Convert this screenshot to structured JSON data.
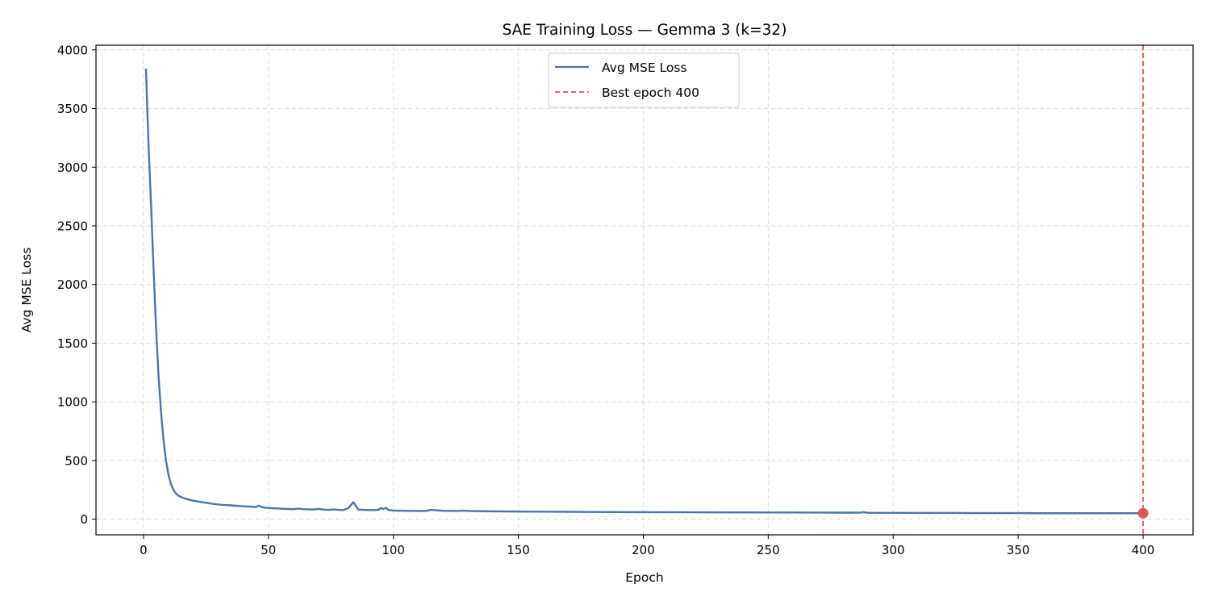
{
  "chart_data": {
    "type": "line",
    "title": "SAE Training Loss — Gemma 3 (k=32)",
    "xlabel": "Epoch",
    "ylabel": "Avg MSE Loss",
    "xlim": [
      -19,
      420
    ],
    "ylim": [
      -133,
      4040
    ],
    "xticks": [
      0,
      50,
      100,
      150,
      200,
      250,
      300,
      350,
      400
    ],
    "yticks": [
      0,
      500,
      1000,
      1500,
      2000,
      2500,
      3000,
      3500,
      4000
    ],
    "grid": true,
    "legend_position": "upper center",
    "series": [
      {
        "name": "Avg MSE Loss",
        "color": "#4c72b0",
        "x": [
          1,
          2,
          3,
          4,
          5,
          6,
          7,
          8,
          9,
          10,
          11,
          12,
          13,
          14,
          15,
          16,
          17,
          18,
          20,
          22,
          25,
          28,
          30,
          32,
          35,
          38,
          40,
          42,
          44,
          45,
          46,
          48,
          50,
          55,
          60,
          62,
          64,
          66,
          68,
          70,
          72,
          74,
          76,
          78,
          80,
          82,
          84,
          86,
          88,
          90,
          92,
          94,
          95,
          96,
          97,
          98,
          100,
          105,
          110,
          113,
          115,
          117,
          120,
          125,
          128,
          130,
          135,
          140,
          145,
          150,
          160,
          170,
          180,
          190,
          200,
          220,
          240,
          260,
          280,
          287,
          288,
          290,
          300,
          310,
          320,
          328,
          330,
          340,
          350,
          360,
          370,
          380,
          390,
          400
        ],
        "y": [
          3840,
          3200,
          2700,
          2150,
          1650,
          1230,
          920,
          680,
          500,
          380,
          300,
          250,
          220,
          200,
          190,
          180,
          175,
          168,
          158,
          150,
          140,
          130,
          125,
          122,
          118,
          113,
          110,
          108,
          106,
          104,
          115,
          100,
          95,
          90,
          86,
          90,
          86,
          84,
          83,
          88,
          82,
          80,
          83,
          80,
          78,
          95,
          145,
          82,
          80,
          78,
          78,
          80,
          95,
          88,
          97,
          80,
          74,
          72,
          70,
          70,
          80,
          76,
          72,
          70,
          73,
          70,
          68,
          67,
          66,
          65,
          64,
          63,
          62,
          61,
          60,
          59,
          58,
          57,
          56,
          56,
          60,
          55,
          54,
          53,
          53,
          53,
          52,
          52,
          52,
          51,
          51,
          51,
          51,
          51
        ]
      }
    ],
    "best_epoch": {
      "label": "Best epoch 400",
      "epoch": 400,
      "loss": 51,
      "color": "#dd5555"
    }
  }
}
